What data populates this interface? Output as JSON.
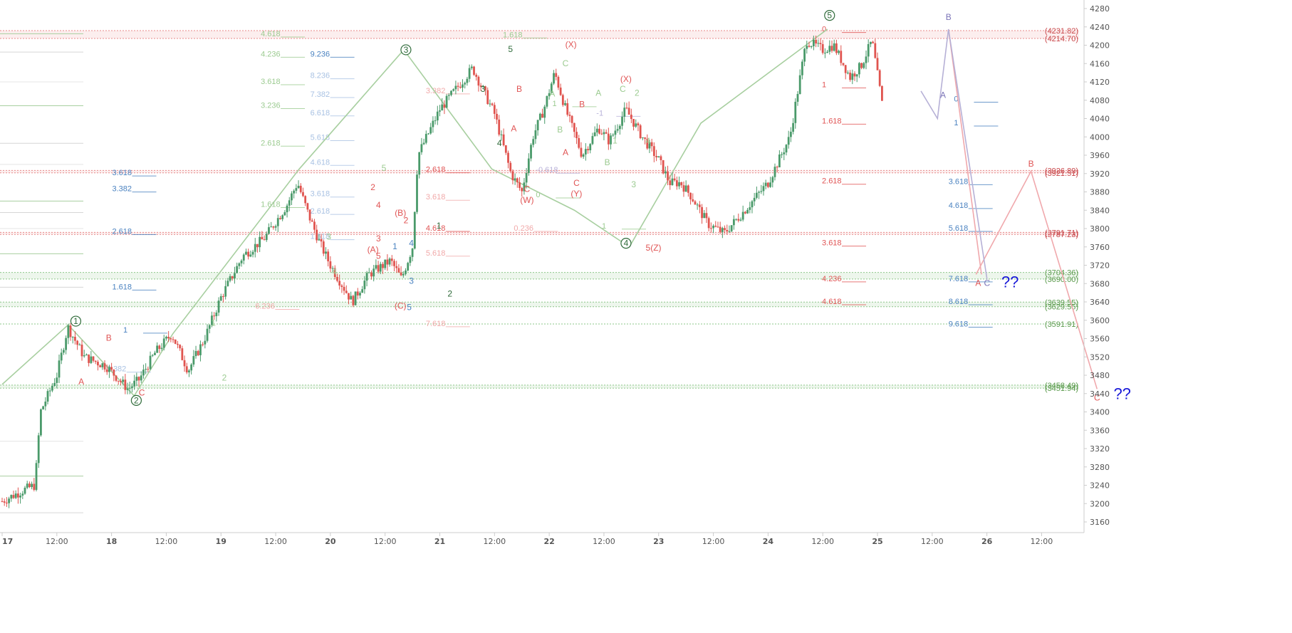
{
  "colors": {
    "background": "#ffffff",
    "up": "#4a9a6a",
    "down": "#e0544f",
    "redZone": "#e88a8a",
    "greenZone": "#8ec78a",
    "pathGreen": "#a8cfa0",
    "pathPink": "#f0a8ac",
    "pathPurple": "#b6b0d6",
    "blueText": "#4a82c0",
    "redText": "#e05555",
    "greenText": "#79b569",
    "darkGreen": "#2f6b3a",
    "navy": "#1818d8",
    "axis": "#cccccc",
    "tick": "#555555"
  },
  "chart_data": {
    "type": "candlestick",
    "title": "",
    "xlabel": "",
    "ylabel": "",
    "ylim": [
      3140,
      4290
    ],
    "xlim": [
      17.0,
      27.0
    ],
    "grid": false,
    "y_ticks": [
      3160,
      3200,
      3240,
      3280,
      3320,
      3360,
      3400,
      3440,
      3480,
      3520,
      3560,
      3600,
      3640,
      3680,
      3720,
      3760,
      3800,
      3840,
      3880,
      3920,
      3960,
      4000,
      4040,
      4080,
      4120,
      4160,
      4200,
      4240,
      4280
    ],
    "x_ticks": [
      {
        "x": 17.0,
        "label": "17"
      },
      {
        "x": 17.5,
        "label": "12:00"
      },
      {
        "x": 18.0,
        "label": "18"
      },
      {
        "x": 18.5,
        "label": "12:00"
      },
      {
        "x": 19.0,
        "label": "19"
      },
      {
        "x": 19.5,
        "label": "12:00"
      },
      {
        "x": 20.0,
        "label": "20"
      },
      {
        "x": 20.5,
        "label": "12:00"
      },
      {
        "x": 21.0,
        "label": "21"
      },
      {
        "x": 21.5,
        "label": "12:00"
      },
      {
        "x": 22.0,
        "label": "22"
      },
      {
        "x": 22.5,
        "label": "12:00"
      },
      {
        "x": 23.0,
        "label": "23"
      },
      {
        "x": 23.5,
        "label": "12:00"
      },
      {
        "x": 24.0,
        "label": "24"
      },
      {
        "x": 24.5,
        "label": "12:00"
      },
      {
        "x": 25.0,
        "label": "25"
      },
      {
        "x": 25.5,
        "label": "12:00"
      },
      {
        "x": 26.0,
        "label": "26"
      },
      {
        "x": 26.5,
        "label": "12:00"
      }
    ],
    "price_path": [
      [
        17.0,
        3205
      ],
      [
        17.2,
        3230
      ],
      [
        17.3,
        3240
      ],
      [
        17.35,
        3400
      ],
      [
        17.5,
        3480
      ],
      [
        17.6,
        3585
      ],
      [
        17.75,
        3520
      ],
      [
        17.95,
        3500
      ],
      [
        18.15,
        3450
      ],
      [
        18.25,
        3470
      ],
      [
        18.4,
        3530
      ],
      [
        18.55,
        3570
      ],
      [
        18.7,
        3490
      ],
      [
        18.85,
        3560
      ],
      [
        19.0,
        3650
      ],
      [
        19.2,
        3740
      ],
      [
        19.4,
        3780
      ],
      [
        19.6,
        3850
      ],
      [
        19.7,
        3900
      ],
      [
        19.8,
        3830
      ],
      [
        19.9,
        3770
      ],
      [
        20.0,
        3720
      ],
      [
        20.2,
        3640
      ],
      [
        20.35,
        3700
      ],
      [
        20.55,
        3730
      ],
      [
        20.65,
        3690
      ],
      [
        20.75,
        3760
      ],
      [
        20.8,
        3960
      ],
      [
        21.0,
        4060
      ],
      [
        21.2,
        4120
      ],
      [
        21.3,
        4150
      ],
      [
        21.5,
        4050
      ],
      [
        21.65,
        3920
      ],
      [
        21.75,
        3880
      ],
      [
        21.85,
        4000
      ],
      [
        21.95,
        4060
      ],
      [
        22.05,
        4140
      ],
      [
        22.15,
        4060
      ],
      [
        22.3,
        3960
      ],
      [
        22.45,
        4020
      ],
      [
        22.55,
        3990
      ],
      [
        22.7,
        4060
      ],
      [
        22.85,
        4000
      ],
      [
        23.0,
        3950
      ],
      [
        23.1,
        3900
      ],
      [
        23.2,
        3900
      ],
      [
        23.3,
        3870
      ],
      [
        23.45,
        3810
      ],
      [
        23.6,
        3790
      ],
      [
        23.75,
        3830
      ],
      [
        23.95,
        3820
      ],
      [
        24.1,
        3860
      ],
      [
        24.2,
        3920
      ],
      [
        24.3,
        3840
      ],
      [
        24.45,
        3810
      ],
      [
        24.6,
        3830
      ],
      [
        24.75,
        3880
      ],
      [
        24.85,
        3900
      ],
      [
        25.0,
        3940
      ],
      [
        25.15,
        4000
      ],
      [
        25.3,
        4030
      ],
      [
        25.45,
        4020
      ],
      [
        25.6,
        3990
      ],
      [
        25.75,
        4000
      ],
      [
        25.9,
        3960
      ],
      [
        26.05,
        3940
      ],
      [
        26.2,
        3920
      ],
      [
        26.35,
        3950
      ],
      [
        26.5,
        3970
      ],
      [
        26.55,
        4200
      ],
      [
        26.65,
        4190
      ],
      [
        26.8,
        4210
      ],
      [
        26.9,
        4170
      ],
      [
        27.0,
        4150
      ]
    ],
    "candles_summary": "OHLC candlesticks drawn from the price path",
    "projection": {
      "pink": [
        [
          25.85,
          3700
        ],
        [
          26.35,
          3925
        ],
        [
          26.95,
          3450
        ]
      ],
      "purple_abc": [
        [
          25.35,
          4100
        ],
        [
          25.5,
          4040
        ],
        [
          25.6,
          4235
        ],
        [
          25.95,
          3690
        ]
      ]
    },
    "horizontal_zones": [
      {
        "label": "(4231.82)",
        "value": 4231.82,
        "color": "red"
      },
      {
        "label": "(4214.70)",
        "value": 4214.7,
        "color": "red"
      },
      {
        "label": "(3926.89)",
        "value": 3926.89,
        "color": "red"
      },
      {
        "label": "(3921.51)",
        "value": 3921.51,
        "color": "red"
      },
      {
        "label": "(3791.71)",
        "value": 3791.71,
        "color": "red"
      },
      {
        "label": "(3787.23)",
        "value": 3787.23,
        "color": "red"
      },
      {
        "label": "(3704.36)",
        "value": 3704.36,
        "color": "green"
      },
      {
        "label": "(3690.00)",
        "value": 3690.0,
        "color": "green"
      },
      {
        "label": "(3639.55)",
        "value": 3639.55,
        "color": "green"
      },
      {
        "label": "(3629.55)",
        "value": 3629.55,
        "color": "green"
      },
      {
        "label": "(3591.91)",
        "value": 3591.91,
        "color": "green"
      },
      {
        "label": "(3458.49)",
        "value": 3458.49,
        "color": "green"
      },
      {
        "label": "(3451.94)",
        "value": 3451.94,
        "color": "green"
      }
    ],
    "fib_levels": [
      {
        "label": "3.618",
        "x": 18.0,
        "y": 3921,
        "color": "blue"
      },
      {
        "label": "3.382",
        "x": 18.0,
        "y": 3886,
        "color": "blue"
      },
      {
        "label": "2.618",
        "x": 18.0,
        "y": 3793,
        "color": "blue"
      },
      {
        "label": "1.618",
        "x": 18.0,
        "y": 3672,
        "color": "blue"
      },
      {
        "label": "1",
        "x": 18.1,
        "y": 3578,
        "color": "blue"
      },
      {
        "label": "0.382",
        "x": 17.95,
        "y": 3493,
        "color": "lightblue"
      },
      {
        "label": "9.236",
        "x": 19.8,
        "y": 4180,
        "color": "blue"
      },
      {
        "label": "8.236",
        "x": 19.8,
        "y": 4133,
        "color": "lightblue"
      },
      {
        "label": "7.382",
        "x": 19.8,
        "y": 4092,
        "color": "lightblue"
      },
      {
        "label": "6.618",
        "x": 19.8,
        "y": 4052,
        "color": "lightblue"
      },
      {
        "label": "5.618",
        "x": 19.8,
        "y": 3998,
        "color": "lightblue"
      },
      {
        "label": "4.618",
        "x": 19.8,
        "y": 3944,
        "color": "lightblue"
      },
      {
        "label": "3.618",
        "x": 19.8,
        "y": 3875,
        "color": "lightblue"
      },
      {
        "label": "2.618",
        "x": 19.8,
        "y": 3837,
        "color": "lightblue"
      },
      {
        "label": "1.618",
        "x": 19.8,
        "y": 3782,
        "color": "lightblue"
      },
      {
        "label": "4.618",
        "x": 19.35,
        "y": 4224,
        "color": "lightgreen"
      },
      {
        "label": "4.236",
        "x": 19.35,
        "y": 4180,
        "color": "lightgreen"
      },
      {
        "label": "3.618",
        "x": 19.35,
        "y": 4120,
        "color": "lightgreen"
      },
      {
        "label": "3.236",
        "x": 19.35,
        "y": 4068,
        "color": "lightgreen"
      },
      {
        "label": "2.618",
        "x": 19.35,
        "y": 3986,
        "color": "lightgreen"
      },
      {
        "label": "1.618",
        "x": 19.35,
        "y": 3852,
        "color": "lightgreen"
      },
      {
        "label": "1.618",
        "x": 21.55,
        "y": 4222,
        "color": "lightgreen"
      },
      {
        "label": "3.382",
        "x": 20.85,
        "y": 4100,
        "color": "lightpink"
      },
      {
        "label": "2.618",
        "x": 20.85,
        "y": 3928,
        "color": "red"
      },
      {
        "label": "3.618",
        "x": 20.85,
        "y": 3868,
        "color": "lightpink"
      },
      {
        "label": "4.618",
        "x": 20.85,
        "y": 3800,
        "color": "red"
      },
      {
        "label": "5.618",
        "x": 20.85,
        "y": 3746,
        "color": "lightpink"
      },
      {
        "label": "7.618",
        "x": 20.85,
        "y": 3592,
        "color": "lightpink"
      },
      {
        "label": "6.236",
        "x": 19.3,
        "y": 3630,
        "color": "lightpink"
      },
      {
        "label": "-1",
        "x": 22.4,
        "y": 4051,
        "color": "lightpurple"
      },
      {
        "label": "-0.618",
        "x": 21.85,
        "y": 3927,
        "color": "lightpurple"
      },
      {
        "label": "0",
        "x": 21.85,
        "y": 3873,
        "color": "lightgreen"
      },
      {
        "label": "1",
        "x": 22.0,
        "y": 4072,
        "color": "lightgreen"
      },
      {
        "label": "1",
        "x": 22.45,
        "y": 3805,
        "color": "lightgreen"
      },
      {
        "label": "0.236",
        "x": 21.65,
        "y": 3800,
        "color": "lightpink"
      },
      {
        "label": "1.618",
        "x": 24.45,
        "y": 4034,
        "color": "red"
      },
      {
        "label": "2.618",
        "x": 24.45,
        "y": 3903,
        "color": "red"
      },
      {
        "label": "3.618",
        "x": 24.45,
        "y": 3768,
        "color": "red"
      },
      {
        "label": "4.236",
        "x": 24.45,
        "y": 3690,
        "color": "red"
      },
      {
        "label": "4.618",
        "x": 24.45,
        "y": 3640,
        "color": "red"
      },
      {
        "label": "1",
        "x": 24.45,
        "y": 4113,
        "color": "red"
      },
      {
        "label": "0",
        "x": 24.45,
        "y": 4234,
        "color": "red"
      },
      {
        "label": "3.618",
        "x": 25.6,
        "y": 3902,
        "color": "blue"
      },
      {
        "label": "4.618",
        "x": 25.6,
        "y": 3850,
        "color": "blue"
      },
      {
        "label": "5.618",
        "x": 25.6,
        "y": 3800,
        "color": "blue"
      },
      {
        "label": "7.618",
        "x": 25.6,
        "y": 3690,
        "color": "blue"
      },
      {
        "label": "8.618",
        "x": 25.6,
        "y": 3640,
        "color": "blue"
      },
      {
        "label": "9.618",
        "x": 25.6,
        "y": 3591,
        "color": "blue"
      },
      {
        "label": "0",
        "x": 25.65,
        "y": 4082,
        "color": "blue"
      },
      {
        "label": "1",
        "x": 25.65,
        "y": 4030,
        "color": "blue"
      }
    ],
    "wave_labels": [
      {
        "label": "1",
        "x": 17.65,
        "y": 3598,
        "style": "circle"
      },
      {
        "label": "2",
        "x": 18.2,
        "y": 3425,
        "style": "circle"
      },
      {
        "label": "3",
        "x": 20.65,
        "y": 4190,
        "style": "circle"
      },
      {
        "label": "4",
        "x": 22.65,
        "y": 3768,
        "style": "circle"
      },
      {
        "label": "5",
        "x": 24.5,
        "y": 4265,
        "style": "circle"
      },
      {
        "label": "B",
        "x": 17.95,
        "y": 3555,
        "color": "red"
      },
      {
        "label": "A",
        "x": 17.7,
        "y": 3460,
        "color": "red"
      },
      {
        "label": "C",
        "x": 18.25,
        "y": 3436,
        "color": "red"
      },
      {
        "label": "1",
        "x": 18.9,
        "y": 3588,
        "color": "lightgreen"
      },
      {
        "label": "2",
        "x": 19.0,
        "y": 3468,
        "color": "lightgreen"
      },
      {
        "label": "3",
        "x": 19.95,
        "y": 3776,
        "color": "lightgreen"
      },
      {
        "label": "4",
        "x": 20.0,
        "y": 3700,
        "color": "lightgreen"
      },
      {
        "label": "5",
        "x": 20.45,
        "y": 3926,
        "color": "lightgreen"
      },
      {
        "label": "2",
        "x": 20.35,
        "y": 3884,
        "color": "red"
      },
      {
        "label": "4",
        "x": 20.4,
        "y": 3845,
        "color": "red"
      },
      {
        "label": "(B)",
        "x": 20.6,
        "y": 3828,
        "color": "red"
      },
      {
        "label": "2",
        "x": 20.65,
        "y": 3812,
        "color": "red"
      },
      {
        "label": "3",
        "x": 20.4,
        "y": 3772,
        "color": "red"
      },
      {
        "label": "(A)",
        "x": 20.35,
        "y": 3748,
        "color": "red"
      },
      {
        "label": "5",
        "x": 20.4,
        "y": 3734,
        "color": "red"
      },
      {
        "label": "1",
        "x": 20.55,
        "y": 3755,
        "color": "blue"
      },
      {
        "label": "4",
        "x": 20.7,
        "y": 3762,
        "color": "blue"
      },
      {
        "label": "3",
        "x": 20.7,
        "y": 3680,
        "color": "blue"
      },
      {
        "label": "(C)",
        "x": 20.6,
        "y": 3625,
        "color": "red"
      },
      {
        "label": "5",
        "x": 20.68,
        "y": 3622,
        "color": "blue"
      },
      {
        "label": "1",
        "x": 20.95,
        "y": 3800,
        "color": "darkgreen"
      },
      {
        "label": "2",
        "x": 21.05,
        "y": 3652,
        "color": "darkgreen"
      },
      {
        "label": "3",
        "x": 21.35,
        "y": 4098,
        "color": "darkgreen"
      },
      {
        "label": "4",
        "x": 21.5,
        "y": 3980,
        "color": "darkgreen"
      },
      {
        "label": "5",
        "x": 21.6,
        "y": 4185,
        "color": "darkgreen"
      },
      {
        "label": "B",
        "x": 21.68,
        "y": 4098,
        "color": "red"
      },
      {
        "label": "A",
        "x": 21.63,
        "y": 4012,
        "color": "red"
      },
      {
        "label": "C",
        "x": 21.75,
        "y": 3880,
        "color": "red"
      },
      {
        "label": "(W)",
        "x": 21.75,
        "y": 3856,
        "color": "red"
      },
      {
        "label": "A",
        "x": 21.98,
        "y": 4088,
        "color": "lightgreen"
      },
      {
        "label": "B",
        "x": 22.05,
        "y": 4010,
        "color": "lightgreen"
      },
      {
        "label": "C",
        "x": 22.1,
        "y": 4154,
        "color": "lightgreen"
      },
      {
        "label": "(X)",
        "x": 22.15,
        "y": 4195,
        "color": "red"
      },
      {
        "label": "B",
        "x": 22.25,
        "y": 4065,
        "color": "red"
      },
      {
        "label": "A",
        "x": 22.1,
        "y": 3960,
        "color": "red"
      },
      {
        "label": "C",
        "x": 22.2,
        "y": 3893,
        "color": "red"
      },
      {
        "label": "(Y)",
        "x": 22.2,
        "y": 3870,
        "color": "red"
      },
      {
        "label": "A",
        "x": 22.4,
        "y": 4090,
        "color": "lightgreen"
      },
      {
        "label": "(X)",
        "x": 22.65,
        "y": 4120,
        "color": "red"
      },
      {
        "label": "C",
        "x": 22.62,
        "y": 4098,
        "color": "lightgreen"
      },
      {
        "label": "2",
        "x": 22.75,
        "y": 4090,
        "color": "lightgreen"
      },
      {
        "label": "1",
        "x": 22.55,
        "y": 3986,
        "color": "lightgreen"
      },
      {
        "label": "B",
        "x": 22.48,
        "y": 3938,
        "color": "lightgreen"
      },
      {
        "label": "4",
        "x": 22.85,
        "y": 3985,
        "color": "lightgreen"
      },
      {
        "label": "3",
        "x": 22.72,
        "y": 3890,
        "color": "lightgreen"
      },
      {
        "label": "5(Z)",
        "x": 22.9,
        "y": 3752,
        "color": "red"
      },
      {
        "label": "A",
        "x": 25.55,
        "y": 4085,
        "color": "purple"
      },
      {
        "label": "B",
        "x": 25.6,
        "y": 4255,
        "color": "purple"
      },
      {
        "label": "A",
        "x": 25.87,
        "y": 3675,
        "color": "red"
      },
      {
        "label": "C",
        "x": 25.95,
        "y": 3675,
        "color": "purple"
      },
      {
        "label": "B",
        "x": 26.35,
        "y": 3935,
        "color": "red"
      },
      {
        "label": "C",
        "x": 26.95,
        "y": 3425,
        "color": "red"
      }
    ],
    "annotations": [
      {
        "text": "??",
        "x": 26.08,
        "y": 3672,
        "color": "navy"
      },
      {
        "text": "??",
        "x": 27.1,
        "y": 3428,
        "color": "navy"
      }
    ]
  }
}
